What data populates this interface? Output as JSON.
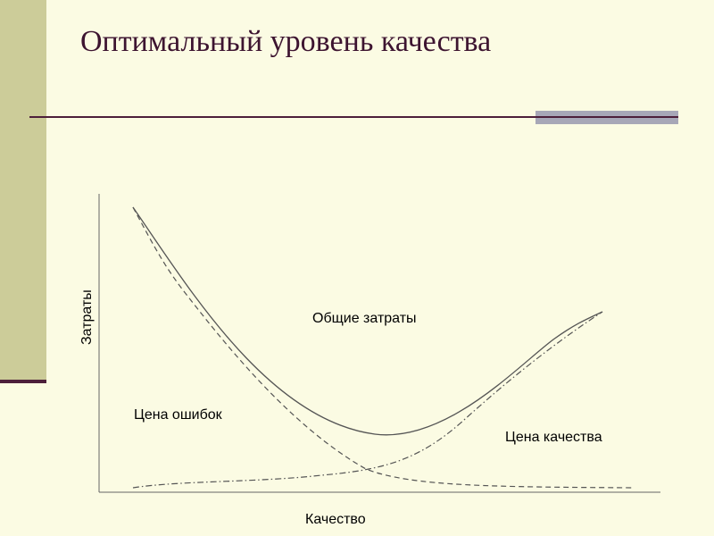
{
  "slide": {
    "title": "Оптимальный уровень качества"
  },
  "chart_data": {
    "type": "line",
    "xlabel": "Качество",
    "ylabel": "Затраты",
    "curve_labels": {
      "total": "Общие затраты",
      "errors": "Цена ошибок",
      "quality": "Цена качества"
    }
  }
}
